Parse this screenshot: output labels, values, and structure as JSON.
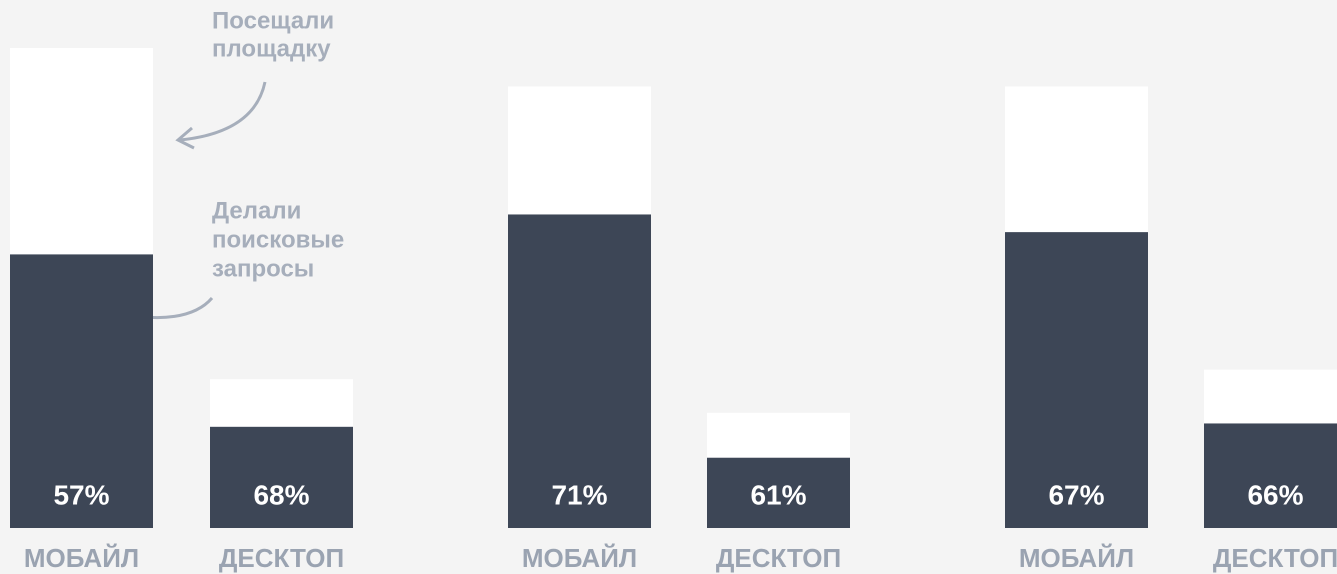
{
  "chart_data": {
    "type": "bar",
    "categories": [
      "МОБАЙЛ",
      "ДЕСКТОП",
      "МОБАЙЛ",
      "ДЕСКТОП",
      "МОБАЙЛ",
      "ДЕСКТОП"
    ],
    "series": [
      {
        "name": "Посещали площадку",
        "color": "#ffffff",
        "values": [
          100,
          31,
          92,
          24,
          92,
          33
        ]
      },
      {
        "name": "Делали поисковые запросы",
        "color": "#3d4656",
        "values": [
          57,
          68,
          71,
          61,
          67,
          66
        ],
        "value_labels": [
          "57%",
          "68%",
          "71%",
          "61%",
          "67%",
          "66%"
        ]
      }
    ],
    "annotations": [
      [
        "Посещали",
        "площадку"
      ],
      [
        "Делали",
        "поисковые",
        "запросы"
      ]
    ]
  }
}
